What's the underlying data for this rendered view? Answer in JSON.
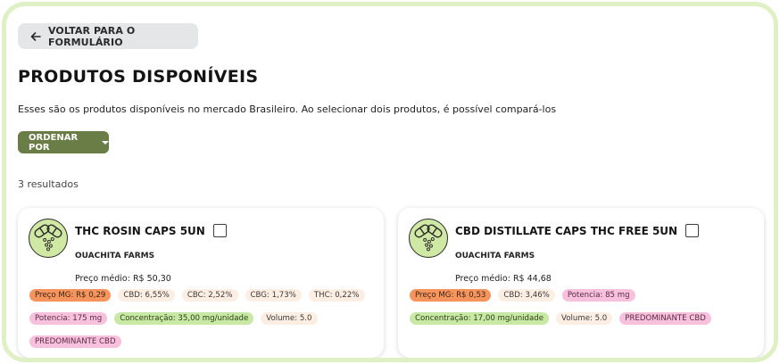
{
  "header": {
    "back_label": "VOLTAR PARA O FORMULÁRIO",
    "title": "PRODUTOS DISPONÍVEIS",
    "subtitle": "Esses são os produtos disponíveis no mercado Brasileiro. Ao selecionar dois produtos, é possível compará-los",
    "sort_label": "ORDENAR POR",
    "results": "3 resultados"
  },
  "colors": {
    "frame": "#dff0c4",
    "sort_button": "#6b7d46",
    "tag_orange": "#f5945c",
    "tag_peach": "#fdeee4",
    "tag_pink": "#f7c1de",
    "tag_green": "#c8e9a4"
  },
  "products": [
    {
      "name": "THC ROSIN CAPS 5UN",
      "brand": "OUACHITA FARMS",
      "avg_price": "Preço médio: R$ 50,30",
      "icon": "capsule-logo-icon",
      "tags": [
        {
          "label": "Preço MG: R$ 0,29",
          "color": "orange"
        },
        {
          "label": "CBD: 6,55%",
          "color": "peach"
        },
        {
          "label": "CBC: 2,52%",
          "color": "peach"
        },
        {
          "label": "CBG: 1,73%",
          "color": "peach"
        },
        {
          "label": "THC: 0,22%",
          "color": "peach"
        },
        {
          "label": "Potencia: 175 mg",
          "color": "pink"
        },
        {
          "label": "Concentração: 35,00 mg/unidade",
          "color": "green"
        },
        {
          "label": "Volume: 5.0",
          "color": "peach"
        },
        {
          "label": "PREDOMINANTE CBD",
          "color": "pink"
        }
      ]
    },
    {
      "name": "CBD DISTILLATE CAPS THC FREE 5UN",
      "brand": "OUACHITA FARMS",
      "avg_price": "Preço médio: R$ 44,68",
      "icon": "capsule-logo-icon",
      "tags": [
        {
          "label": "Preço MG: R$ 0,53",
          "color": "orange"
        },
        {
          "label": "CBD: 3,46%",
          "color": "peach"
        },
        {
          "label": "Potencia: 85 mg",
          "color": "pink"
        },
        {
          "label": "Concentração: 17,00 mg/unidade",
          "color": "green"
        },
        {
          "label": "Volume: 5.0",
          "color": "peach"
        },
        {
          "label": "PREDOMINANTE CBD",
          "color": "pink"
        }
      ]
    }
  ]
}
